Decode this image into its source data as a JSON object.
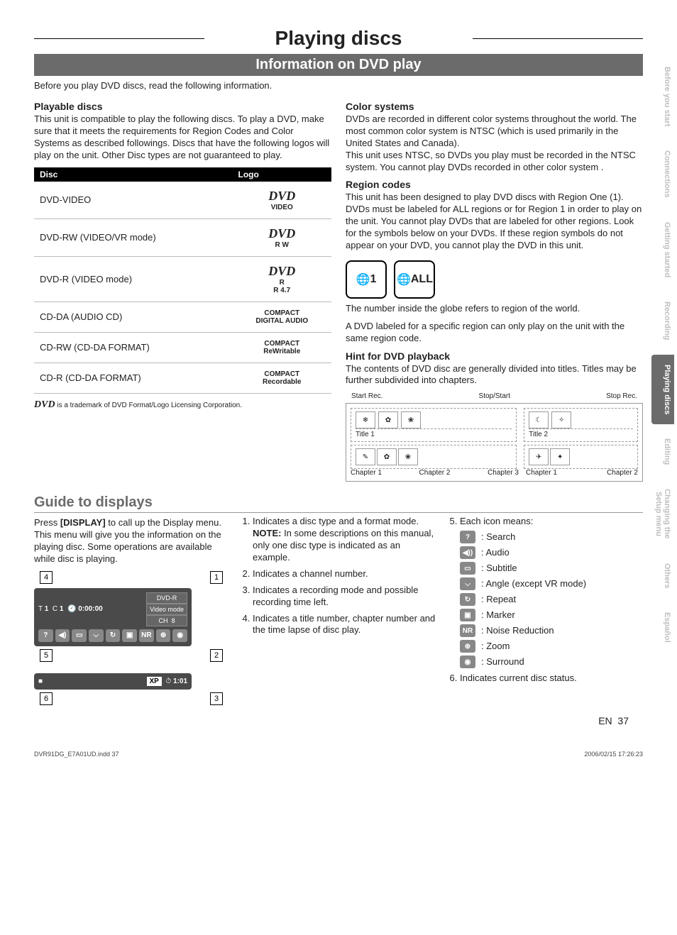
{
  "title": "Playing discs",
  "subtitle": "Information on DVD play",
  "intro": "Before you play DVD discs, read the following information.",
  "playable": {
    "heading": "Playable discs",
    "body": "This unit is compatible to play the following discs. To play a DVD, make sure that it meets the requirements for Region Codes and Color Systems as described followings. Discs that have the following logos will play on the unit. Other Disc types are not guaranteed to play.",
    "table": {
      "col1": "Disc",
      "col2": "Logo",
      "rows": [
        {
          "name": "DVD-VIDEO",
          "logo": "DVD",
          "sub": "VIDEO"
        },
        {
          "name": "DVD-RW (VIDEO/VR mode)",
          "logo": "DVD",
          "sub": "R W"
        },
        {
          "name": "DVD-R (VIDEO mode)",
          "logo": "DVD",
          "sub": "R\nR 4.7"
        },
        {
          "name": "CD-DA (AUDIO CD)",
          "logo": "disc",
          "sub": "COMPACT\nDIGITAL AUDIO"
        },
        {
          "name": "CD-RW (CD-DA FORMAT)",
          "logo": "disc",
          "sub": "COMPACT\nReWritable"
        },
        {
          "name": "CD-R (CD-DA FORMAT)",
          "logo": "disc",
          "sub": "COMPACT\nRecordable"
        }
      ]
    },
    "trademark": "is a trademark of DVD Format/Logo Licensing Corporation."
  },
  "color": {
    "heading": "Color systems",
    "body": "DVDs are recorded in different color systems throughout the world. The most common color system is NTSC (which is used primarily in the United States and Canada).\nThis unit uses NTSC, so DVDs you play must be recorded in the NTSC system. You cannot play DVDs recorded in other color system ."
  },
  "region": {
    "heading": "Region codes",
    "body": "This unit has been designed to play DVD discs with Region One (1). DVDs must be labeled for ALL regions or for Region 1 in order to play on the unit. You cannot play DVDs that are labeled for other regions. Look for the symbols below on your DVDs. If these region symbols do not appear on your DVD, you cannot play the DVD in this unit.",
    "globe1": "1",
    "globe2": "ALL",
    "note1": "The number inside the globe refers to region of the world.",
    "note2": "A DVD labeled for a specific region can only play on the unit with the same region code."
  },
  "hint": {
    "heading": "Hint for DVD playback",
    "body": "The contents of DVD disc are generally divided into titles. Titles may be further subdivided into chapters.",
    "labels": {
      "startRec": "Start Rec.",
      "stopStart": "Stop/Start",
      "stopRec": "Stop Rec.",
      "title1": "Title 1",
      "title2": "Title 2",
      "ch1": "Chapter 1",
      "ch2": "Chapter 2",
      "ch3": "Chapter 3"
    }
  },
  "guide": {
    "heading": "Guide to displays",
    "intro_a": "Press ",
    "intro_key": "[DISPLAY]",
    "intro_b": " to call up the Display menu. This menu will give you the information on the playing disc. Some operations are available while disc is playing.",
    "display": {
      "t": "T",
      "tval": "1",
      "c": "C",
      "cval": "1",
      "clock": "0:00:00",
      "type": "DVD-R",
      "mode": "Video mode",
      "ch": "CH",
      "chval": "8",
      "xp": "XP",
      "time": "1:01"
    },
    "callouts": [
      "1",
      "2",
      "3",
      "4",
      "5",
      "6"
    ],
    "list": {
      "i1a": "Indicates a disc type and a format mode.",
      "i1note_label": "NOTE:",
      "i1note": " In some descriptions on this manual, only one disc type is indicated as an example.",
      "i2": "Indicates a channel number.",
      "i3": "Indicates a recording mode and possible recording time left.",
      "i4": "Indicates a title number, chapter number and the time lapse of disc play.",
      "i5": "Each icon means:",
      "icons": [
        {
          "name": "search-icon",
          "sym": "?",
          "label": ": Search"
        },
        {
          "name": "audio-icon",
          "sym": "◀))",
          "label": ": Audio"
        },
        {
          "name": "subtitle-icon",
          "sym": "▭",
          "label": ": Subtitle"
        },
        {
          "name": "angle-icon",
          "sym": "⌵",
          "label": ": Angle (except VR mode)"
        },
        {
          "name": "repeat-icon",
          "sym": "↻",
          "label": ": Repeat"
        },
        {
          "name": "marker-icon",
          "sym": "▣",
          "label": ": Marker"
        },
        {
          "name": "nr-icon",
          "sym": "NR",
          "label": ": Noise Reduction"
        },
        {
          "name": "zoom-icon",
          "sym": "⊕",
          "label": ": Zoom"
        },
        {
          "name": "surround-icon",
          "sym": "◉",
          "label": ": Surround"
        }
      ],
      "i6": "Indicates current disc status."
    }
  },
  "tabs": [
    "Before you start",
    "Connections",
    "Getting started",
    "Recording",
    "Playing discs",
    "Editing",
    "Changing the\nSetup menu",
    "Others",
    "Español"
  ],
  "active_tab": 4,
  "page_label": "EN",
  "page_num": "37",
  "footer_left": "DVR91DG_E7A01UD.indd   37",
  "footer_right": "2006/02/15   17:26:23"
}
